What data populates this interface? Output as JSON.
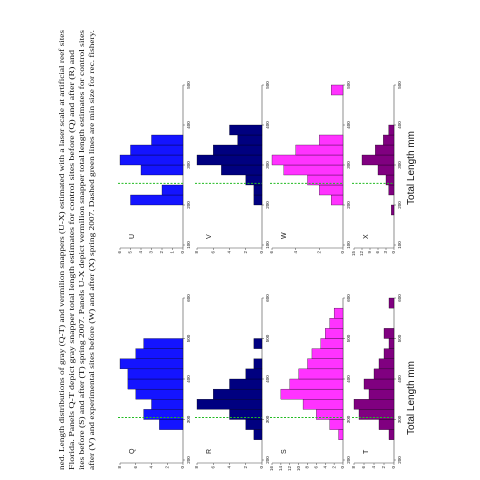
{
  "caption": [
    "ned. Length distributions of gray (Q-T) and vermilion snappers (U-X) estimated with a laser scale at artificial reef sites",
    "Florida. Panels Q-T depict gray snapper total length estimates for control sites before (Q) and after (R) and",
    "ites before (S) and after (T) spring 2007. Panels U-X depict vermilion snapper total length estimates for control sites",
    "after (V) and experimental sites before (W) and after (X) spring 2007. Dashed green lines are min size for rec. fishery."
  ],
  "column_labels": [
    "Total Length mm",
    "Total Length mm"
  ],
  "panels": [
    {
      "label": "Q",
      "color": "#1414ff",
      "xlim": [
        200,
        600
      ],
      "xticks": [
        200,
        300,
        400,
        500,
        600
      ],
      "ylim": [
        0,
        8
      ],
      "yticks": [
        0,
        2,
        4,
        6,
        8
      ],
      "min_size": 305,
      "bins": [
        200,
        225,
        250,
        275,
        300,
        325,
        350,
        375,
        400,
        425,
        450,
        475,
        500,
        525,
        550,
        575,
        600
      ],
      "counts": [
        0,
        0,
        0,
        3,
        5,
        4,
        6,
        7,
        7,
        8,
        6,
        5,
        0,
        0,
        0,
        0
      ]
    },
    {
      "label": "R",
      "color": "#000080",
      "xlim": [
        200,
        600
      ],
      "xticks": [
        200,
        300,
        400,
        500,
        600
      ],
      "ylim": [
        0,
        8
      ],
      "yticks": [
        0,
        2,
        4,
        6,
        8
      ],
      "min_size": 305,
      "bins": [
        200,
        225,
        250,
        275,
        300,
        325,
        350,
        375,
        400,
        425,
        450,
        475,
        500,
        525,
        550,
        575,
        600
      ],
      "counts": [
        0,
        0,
        1,
        2,
        4,
        8,
        6,
        4,
        2,
        1,
        0,
        1,
        0,
        0,
        0,
        0
      ]
    },
    {
      "label": "S",
      "color": "#ff33ff",
      "xlim": [
        200,
        600
      ],
      "xticks": [
        200,
        300,
        400,
        500,
        600
      ],
      "ylim": [
        0,
        16
      ],
      "yticks": [
        0,
        2,
        4,
        6,
        8,
        10,
        12,
        14,
        16
      ],
      "min_size": 305,
      "bins": [
        200,
        225,
        250,
        275,
        300,
        325,
        350,
        375,
        400,
        425,
        450,
        475,
        500,
        525,
        550,
        575,
        600
      ],
      "counts": [
        0,
        0,
        1,
        3,
        6,
        9,
        14,
        12,
        10,
        8,
        7,
        5,
        4,
        3,
        2,
        0
      ]
    },
    {
      "label": "T",
      "color": "#800080",
      "xlim": [
        200,
        600
      ],
      "xticks": [
        200,
        300,
        400,
        500,
        600
      ],
      "ylim": [
        0,
        8
      ],
      "yticks": [
        0,
        2,
        4,
        6,
        8
      ],
      "min_size": 305,
      "bins": [
        200,
        225,
        250,
        275,
        300,
        325,
        350,
        375,
        400,
        425,
        450,
        475,
        500,
        525,
        550,
        575,
        600
      ],
      "counts": [
        0,
        0,
        1,
        3,
        7,
        8,
        5,
        6,
        4,
        3,
        2,
        1,
        2,
        0,
        0,
        1
      ]
    },
    {
      "label": "U",
      "color": "#1414ff",
      "xlim": [
        100,
        500
      ],
      "xticks": [
        100,
        200,
        300,
        400,
        500
      ],
      "ylim": [
        0,
        6
      ],
      "yticks": [
        0,
        1,
        2,
        3,
        4,
        5,
        6
      ],
      "min_size": 254,
      "bins": [
        100,
        125,
        150,
        175,
        200,
        225,
        250,
        275,
        300,
        325,
        350,
        375,
        400,
        425,
        450,
        475,
        500
      ],
      "counts": [
        0,
        0,
        0,
        0,
        5,
        2,
        0,
        4,
        6,
        5,
        3,
        0,
        0,
        0,
        0,
        0
      ]
    },
    {
      "label": "V",
      "color": "#000080",
      "xlim": [
        100,
        500
      ],
      "xticks": [
        100,
        200,
        300,
        400,
        500
      ],
      "ylim": [
        0,
        8
      ],
      "yticks": [
        0,
        2,
        4,
        6,
        8
      ],
      "min_size": 254,
      "bins": [
        100,
        125,
        150,
        175,
        200,
        225,
        250,
        275,
        300,
        325,
        350,
        375,
        400,
        425,
        450,
        475,
        500
      ],
      "counts": [
        0,
        0,
        0,
        0,
        1,
        1,
        2,
        5,
        8,
        6,
        3,
        4,
        0,
        0,
        0,
        0
      ]
    },
    {
      "label": "W",
      "color": "#ff33ff",
      "xlim": [
        100,
        500
      ],
      "xticks": [
        100,
        200,
        300,
        400,
        500
      ],
      "ylim": [
        0,
        6
      ],
      "yticks": [
        0,
        2,
        4,
        6
      ],
      "min_size": 254,
      "bins": [
        100,
        125,
        150,
        175,
        200,
        225,
        250,
        275,
        300,
        325,
        350,
        375,
        400,
        425,
        450,
        475,
        500
      ],
      "counts": [
        0,
        0,
        0,
        0,
        1,
        2,
        3,
        5,
        6,
        4,
        2,
        0,
        0,
        0,
        0,
        1
      ]
    },
    {
      "label": "X",
      "color": "#800080",
      "xlim": [
        100,
        500
      ],
      "xticks": [
        100,
        200,
        300,
        400,
        500
      ],
      "ylim": [
        0,
        15
      ],
      "yticks": [
        0,
        3,
        6,
        9,
        12,
        15
      ],
      "min_size": 254,
      "bins": [
        100,
        125,
        150,
        175,
        200,
        225,
        250,
        275,
        300,
        325,
        350,
        375,
        400,
        425,
        450,
        475,
        500
      ],
      "counts": [
        0,
        0,
        0,
        1,
        0,
        2,
        3,
        6,
        12,
        7,
        4,
        2,
        0,
        0,
        0,
        0
      ]
    }
  ]
}
